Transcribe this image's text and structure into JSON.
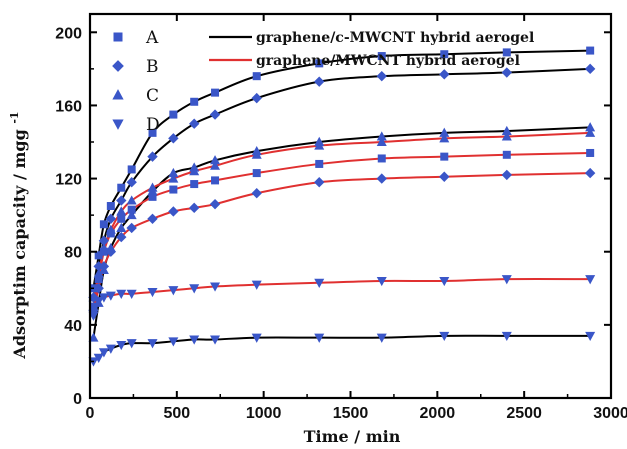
{
  "chart_data": {
    "type": "scatter",
    "xlabel": "Time / min",
    "ylabel": "Adsorptim capacity / mgg",
    "ylabel_sup": "-1",
    "xlim": [
      0,
      3000
    ],
    "ylim": [
      0,
      210
    ],
    "x_ticks": [
      0,
      500,
      1000,
      1500,
      2000,
      2500,
      3000
    ],
    "y_ticks": [
      0,
      40,
      80,
      120,
      160,
      200
    ],
    "legend_markers": [
      {
        "label": "A",
        "marker": "square"
      },
      {
        "label": "B",
        "marker": "diamond"
      },
      {
        "label": "C",
        "marker": "triangle-up"
      },
      {
        "label": "D",
        "marker": "triangle-down"
      }
    ],
    "legend_lines": [
      {
        "label": "graphene/c-MWCNT hybrid aerogel",
        "color": "#000000"
      },
      {
        "label": "graphene/MWCNT hybrid aerogel",
        "color": "#e03030"
      }
    ],
    "marker_color": "#3a56c8",
    "series": [
      {
        "marker": "square",
        "fit": "black",
        "x": [
          20,
          50,
          80,
          120,
          180,
          240,
          360,
          480,
          600,
          720,
          960,
          1320,
          1680,
          2040,
          2400,
          2880
        ],
        "y": [
          60,
          78,
          95,
          105,
          115,
          125,
          145,
          155,
          162,
          167,
          176,
          183,
          187,
          188,
          189,
          190
        ]
      },
      {
        "marker": "diamond",
        "fit": "black",
        "x": [
          20,
          50,
          80,
          120,
          180,
          240,
          360,
          480,
          600,
          720,
          960,
          1320,
          1680,
          2040,
          2400,
          2880
        ],
        "y": [
          55,
          72,
          86,
          98,
          108,
          118,
          132,
          142,
          150,
          155,
          164,
          173,
          176,
          177,
          178,
          180
        ]
      },
      {
        "marker": "triangle-up",
        "fit": "black",
        "x": [
          20,
          50,
          80,
          120,
          180,
          240,
          360,
          480,
          600,
          720,
          960,
          1320,
          1680,
          2040,
          2400,
          2880
        ],
        "y": [
          33,
          52,
          70,
          82,
          93,
          100,
          113,
          123,
          126,
          130,
          135,
          140,
          143,
          145,
          146,
          148
        ]
      },
      {
        "marker": "triangle-down",
        "fit": "black",
        "x": [
          20,
          50,
          80,
          120,
          180,
          240,
          360,
          480,
          600,
          720,
          960,
          1320,
          1680,
          2040,
          2400,
          2880
        ],
        "y": [
          20,
          22,
          25,
          27,
          29,
          30,
          30,
          31,
          32,
          32,
          33,
          33,
          33,
          34,
          34,
          34
        ]
      },
      {
        "marker": "square",
        "fit": "red",
        "x": [
          20,
          50,
          80,
          120,
          180,
          240,
          360,
          480,
          600,
          720,
          960,
          1320,
          1680,
          2040,
          2400,
          2880
        ],
        "y": [
          50,
          65,
          80,
          90,
          98,
          103,
          110,
          114,
          117,
          119,
          123,
          128,
          131,
          132,
          133,
          134
        ]
      },
      {
        "marker": "diamond",
        "fit": "red",
        "x": [
          20,
          50,
          80,
          120,
          180,
          240,
          360,
          480,
          600,
          720,
          960,
          1320,
          1680,
          2040,
          2400,
          2880
        ],
        "y": [
          48,
          60,
          72,
          80,
          88,
          93,
          98,
          102,
          104,
          106,
          112,
          118,
          120,
          121,
          122,
          123
        ]
      },
      {
        "marker": "triangle-up",
        "fit": "red",
        "x": [
          20,
          50,
          80,
          120,
          180,
          240,
          360,
          480,
          600,
          720,
          960,
          1320,
          1680,
          2040,
          2400,
          2880
        ],
        "y": [
          55,
          68,
          82,
          92,
          102,
          108,
          115,
          120,
          124,
          127,
          133,
          138,
          140,
          142,
          143,
          145
        ]
      },
      {
        "marker": "triangle-down",
        "fit": "red",
        "x": [
          20,
          50,
          80,
          120,
          180,
          240,
          360,
          480,
          600,
          720,
          960,
          1320,
          1680,
          2040,
          2400,
          2880
        ],
        "y": [
          45,
          53,
          55,
          56,
          57,
          57,
          58,
          59,
          60,
          61,
          62,
          63,
          64,
          64,
          65,
          65
        ]
      }
    ]
  }
}
